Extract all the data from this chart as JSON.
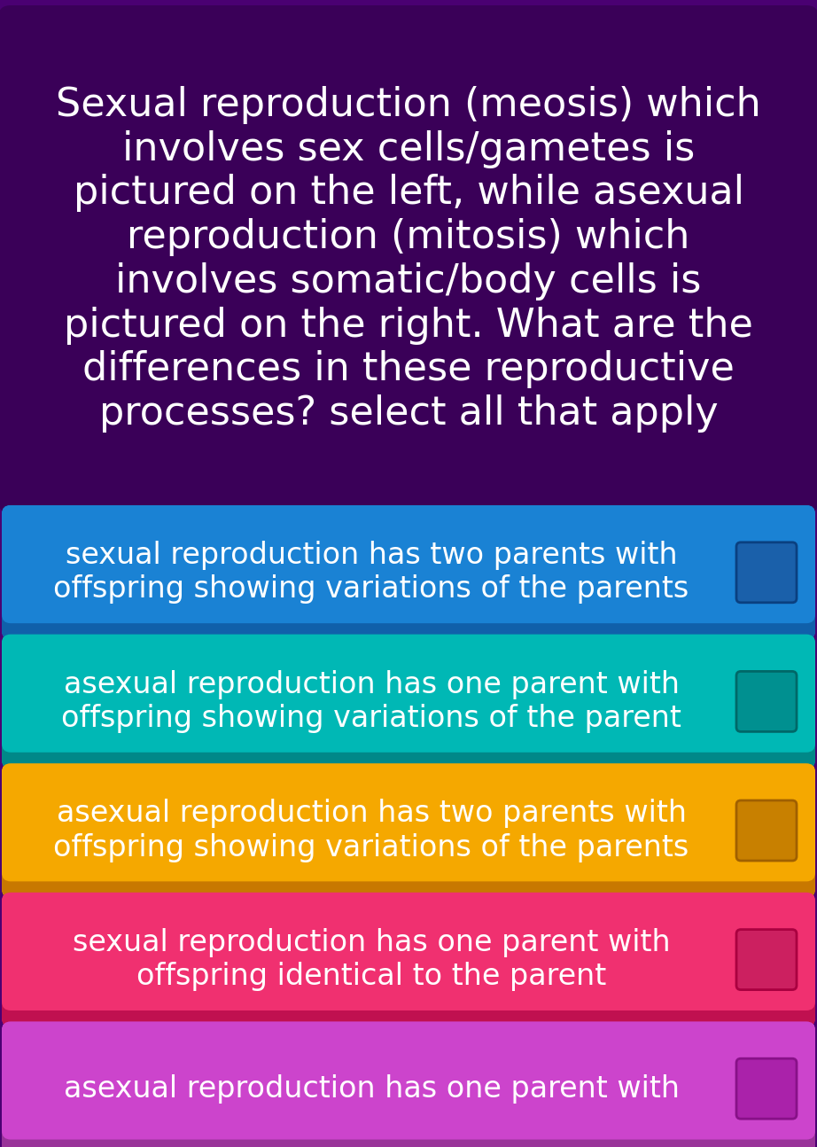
{
  "background_color": "#4a0072",
  "question_bg": "#3a0058",
  "question_text": "Sexual reproduction (meosis) which\ninvolves sex cells/gametes is\npictured on the left, while asexual\nreproduction (mitosis) which\ninvolves somatic/body cells is\npictured on the right. What are the\ndifferences in these reproductive\nprocesses? select all that apply",
  "question_text_color": "#ffffff",
  "question_fontsize": 32,
  "options": [
    {
      "text": "sexual reproduction has two parents with\noffspring showing variations of the parents",
      "bg_color": "#1a82d4",
      "bg_color_dark": "#1060aa",
      "text_color": "#ffffff",
      "checkbox_color": "#1a60aa",
      "checkbox_border": "#0a4080"
    },
    {
      "text": "asexual reproduction has one parent with\noffspring showing variations of the parent",
      "bg_color": "#00b8b5",
      "bg_color_dark": "#008888",
      "text_color": "#ffffff",
      "checkbox_color": "#009090",
      "checkbox_border": "#006868"
    },
    {
      "text": "asexual reproduction has two parents with\noffspring showing variations of the parents",
      "bg_color": "#f5a800",
      "bg_color_dark": "#c87800",
      "text_color": "#ffffff",
      "checkbox_color": "#c88000",
      "checkbox_border": "#a06000"
    },
    {
      "text": "sexual reproduction has one parent with\noffspring identical to the parent",
      "bg_color": "#f03070",
      "bg_color_dark": "#c01050",
      "text_color": "#ffffff",
      "checkbox_color": "#cc2060",
      "checkbox_border": "#aa0040"
    },
    {
      "text": "asexual reproduction has one parent with",
      "bg_color": "#cc44cc",
      "bg_color_dark": "#993399",
      "text_color": "#ffffff",
      "checkbox_color": "#aa22aa",
      "checkbox_border": "#881188"
    }
  ],
  "option_fontsize": 24,
  "fig_width": 9.22,
  "fig_height": 12.94,
  "dpi": 100
}
